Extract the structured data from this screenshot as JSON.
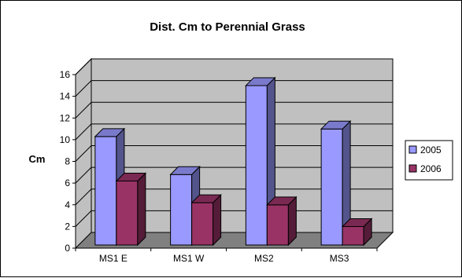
{
  "chart_data": {
    "type": "bar",
    "title": "Dist. Cm to Perennial Grass",
    "ylabel": "Cm",
    "xlabel": "",
    "categories": [
      "MS1 E",
      "MS1 W",
      "MS2",
      "MS3"
    ],
    "series": [
      {
        "name": "2005",
        "values": [
          10.0,
          6.5,
          14.7,
          10.7
        ],
        "color": "#9999ff"
      },
      {
        "name": "2006",
        "values": [
          5.9,
          3.9,
          3.7,
          1.7
        ],
        "color": "#993366"
      }
    ],
    "ylim": [
      0,
      16
    ],
    "yticks": [
      0,
      2,
      4,
      6,
      8,
      10,
      12,
      14,
      16
    ],
    "grid": true,
    "legend": "right",
    "wall_color": "#c0c0c0",
    "floor_color": "#808080"
  }
}
